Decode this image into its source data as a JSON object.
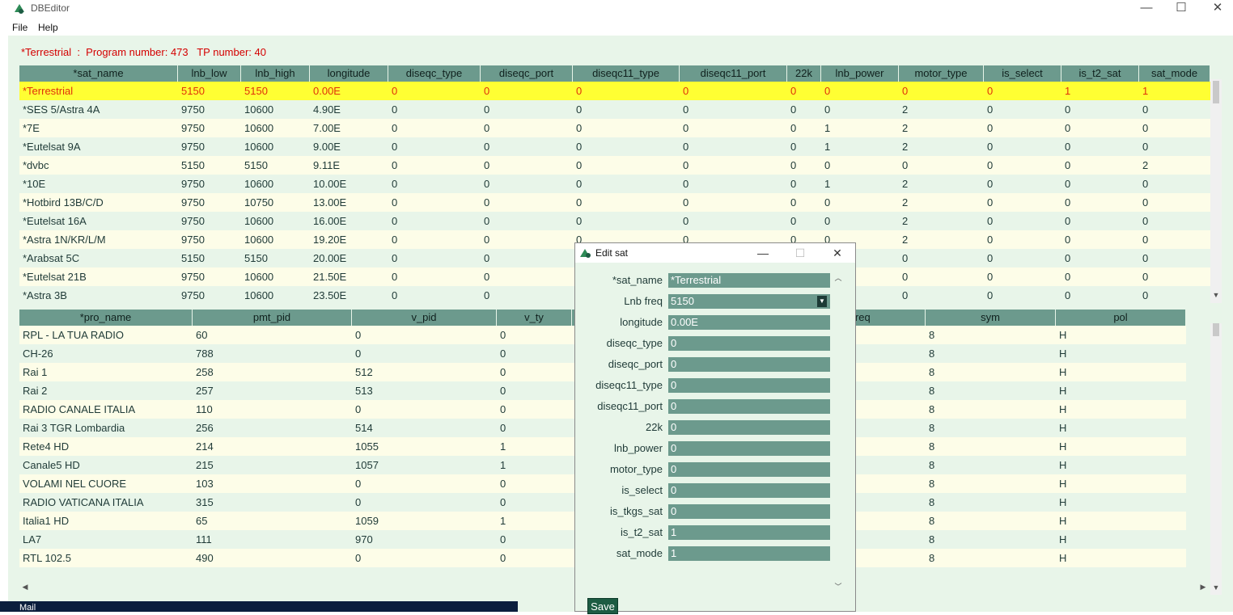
{
  "window": {
    "title": "DBEditor",
    "minimize": "—",
    "maximize": "☐",
    "close": "✕"
  },
  "menu": {
    "file": "File",
    "help": "Help"
  },
  "status": "*Terrestrial  :  Program number: 473   TP number: 40",
  "sat_table": {
    "columns": [
      "*sat_name",
      "lnb_low",
      "lnb_high",
      "longitude",
      "diseqc_type",
      "diseqc_port",
      "diseqc11_type",
      "diseqc11_port",
      "22k",
      "lnb_power",
      "motor_type",
      "is_select",
      "is_t2_sat",
      "sat_mode"
    ],
    "rows": [
      [
        "*Terrestrial",
        "5150",
        "5150",
        "0.00E",
        "0",
        "0",
        "0",
        "0",
        "0",
        "0",
        "0",
        "0",
        "1",
        "1"
      ],
      [
        "*SES 5/Astra 4A",
        "9750",
        "10600",
        "4.90E",
        "0",
        "0",
        "0",
        "0",
        "0",
        "0",
        "2",
        "0",
        "0",
        "0"
      ],
      [
        "*7E",
        "9750",
        "10600",
        "7.00E",
        "0",
        "0",
        "0",
        "0",
        "0",
        "1",
        "2",
        "0",
        "0",
        "0"
      ],
      [
        "*Eutelsat 9A",
        "9750",
        "10600",
        "9.00E",
        "0",
        "0",
        "0",
        "0",
        "0",
        "1",
        "2",
        "0",
        "0",
        "0"
      ],
      [
        "*dvbc",
        "5150",
        "5150",
        "9.11E",
        "0",
        "0",
        "0",
        "0",
        "0",
        "0",
        "0",
        "0",
        "0",
        "2"
      ],
      [
        "*10E",
        "9750",
        "10600",
        "10.00E",
        "0",
        "0",
        "0",
        "0",
        "0",
        "1",
        "2",
        "0",
        "0",
        "0"
      ],
      [
        "*Hotbird 13B/C/D",
        "9750",
        "10750",
        "13.00E",
        "0",
        "0",
        "0",
        "0",
        "0",
        "0",
        "2",
        "0",
        "0",
        "0"
      ],
      [
        "*Eutelsat 16A",
        "9750",
        "10600",
        "16.00E",
        "0",
        "0",
        "0",
        "0",
        "0",
        "0",
        "2",
        "0",
        "0",
        "0"
      ],
      [
        "*Astra 1N/KR/L/M",
        "9750",
        "10600",
        "19.20E",
        "0",
        "0",
        "0",
        "0",
        "0",
        "0",
        "2",
        "0",
        "0",
        "0"
      ],
      [
        "*Arabsat 5C",
        "5150",
        "5150",
        "20.00E",
        "0",
        "0",
        "",
        "",
        "",
        "",
        "0",
        "0",
        "0",
        "0"
      ],
      [
        "*Eutelsat 21B",
        "9750",
        "10600",
        "21.50E",
        "0",
        "0",
        "",
        "",
        "",
        "",
        "0",
        "0",
        "0",
        "0"
      ],
      [
        "*Astra 3B",
        "9750",
        "10600",
        "23.50E",
        "0",
        "0",
        "",
        "",
        "",
        "",
        "0",
        "0",
        "0",
        "0"
      ]
    ]
  },
  "pro_table": {
    "columns": [
      "*pro_name",
      "pmt_pid",
      "v_pid",
      "v_ty",
      "",
      "",
      "freq",
      "sym",
      "pol"
    ],
    "rows": [
      [
        "RPL - LA TUA RADIO",
        "60",
        "0",
        "0",
        "",
        "",
        "",
        "8",
        "H"
      ],
      [
        "CH-26",
        "788",
        "0",
        "0",
        "",
        "",
        "",
        "8",
        "H"
      ],
      [
        "Rai 1",
        "258",
        "512",
        "0",
        "",
        "",
        "",
        "8",
        "H"
      ],
      [
        "Rai 2",
        "257",
        "513",
        "0",
        "",
        "",
        "",
        "8",
        "H"
      ],
      [
        "RADIO CANALE ITALIA",
        "110",
        "0",
        "0",
        "",
        "",
        "",
        "8",
        "H"
      ],
      [
        "Rai 3 TGR Lombardia",
        "256",
        "514",
        "0",
        "",
        "",
        "",
        "8",
        "H"
      ],
      [
        "Rete4 HD",
        "214",
        "1055",
        "1",
        "",
        "",
        "",
        "8",
        "H"
      ],
      [
        "Canale5 HD",
        "215",
        "1057",
        "1",
        "",
        "",
        "",
        "8",
        "H"
      ],
      [
        "VOLAMI NEL CUORE",
        "103",
        "0",
        "0",
        "",
        "",
        "",
        "8",
        "H"
      ],
      [
        "RADIO VATICANA ITALIA",
        "315",
        "0",
        "0",
        "",
        "",
        "",
        "8",
        "H"
      ],
      [
        "Italia1 HD",
        "65",
        "1059",
        "1",
        "",
        "",
        "",
        "8",
        "H"
      ],
      [
        "LA7",
        "111",
        "970",
        "0",
        "",
        "",
        "",
        "8",
        "H"
      ],
      [
        "RTL 102.5",
        "490",
        "0",
        "0",
        "",
        "",
        "",
        "8",
        "H"
      ]
    ]
  },
  "taskbar": {
    "label": "Mail"
  },
  "dialog": {
    "title": "Edit sat",
    "fields": [
      {
        "label": "*sat_name",
        "value": "*Terrestrial"
      },
      {
        "label": "Lnb freq",
        "value": "5150"
      },
      {
        "label": "longitude",
        "value": "0.00E"
      },
      {
        "label": "diseqc_type",
        "value": "0"
      },
      {
        "label": "diseqc_port",
        "value": "0"
      },
      {
        "label": "diseqc11_type",
        "value": "0"
      },
      {
        "label": "diseqc11_port",
        "value": "0"
      },
      {
        "label": "22k",
        "value": "0"
      },
      {
        "label": "lnb_power",
        "value": "0"
      },
      {
        "label": "motor_type",
        "value": "0"
      },
      {
        "label": "is_select",
        "value": "0"
      },
      {
        "label": "is_tkgs_sat",
        "value": "0"
      },
      {
        "label": "is_t2_sat",
        "value": "1"
      },
      {
        "label": "sat_mode",
        "value": "1"
      }
    ],
    "save_label": "Save"
  },
  "colors": {
    "header": "#6c9a8d",
    "selected_row": "#ffff33",
    "status_text": "#d40000",
    "background": "#e8f5e9"
  }
}
